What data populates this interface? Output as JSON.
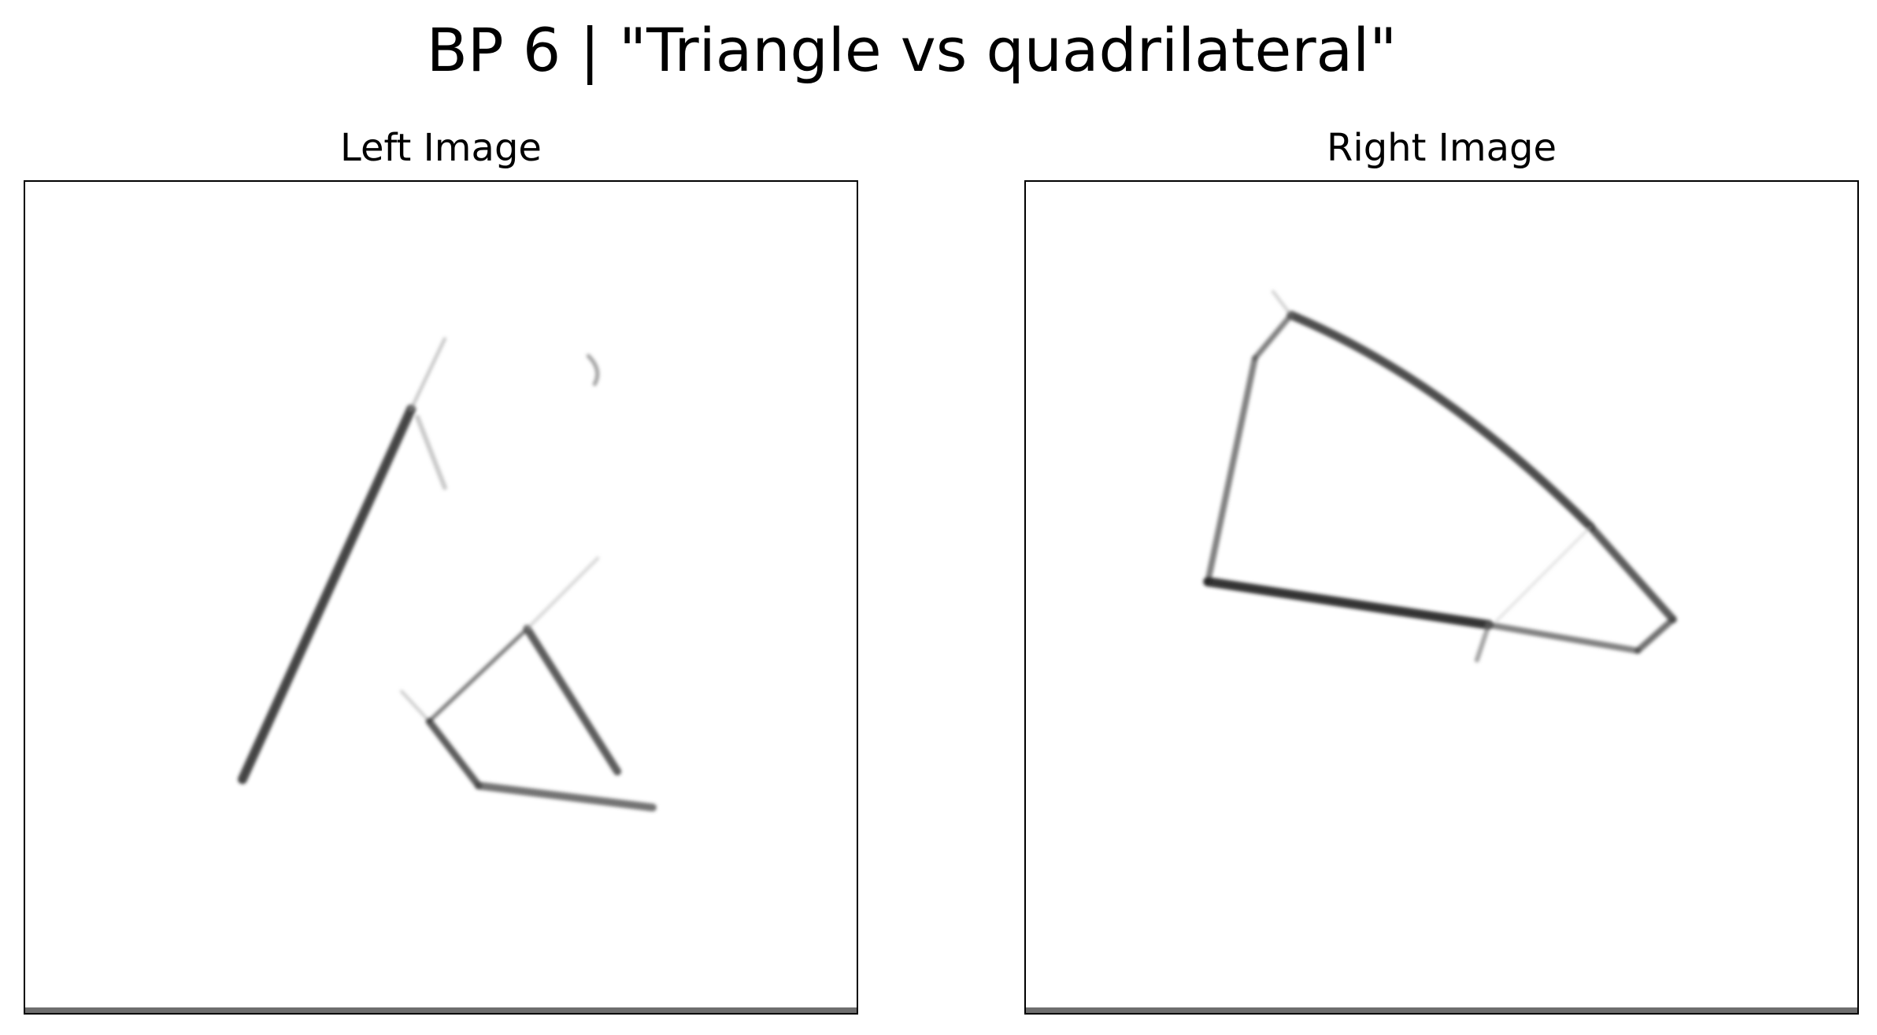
{
  "figure": {
    "title": "BP 6 | \"Triangle vs quadrilateral\""
  },
  "panels": {
    "left": {
      "title": "Left Image",
      "content": "triangle-sketch"
    },
    "right": {
      "title": "Right Image",
      "content": "quadrilateral-sketch"
    }
  },
  "colors": {
    "background": "#ffffff",
    "stroke": "#1a1a1a",
    "frame": "#000000"
  }
}
